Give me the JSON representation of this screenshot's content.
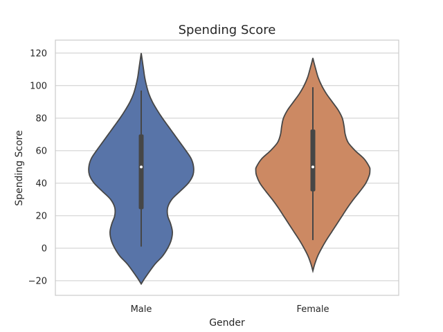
{
  "chart_data": {
    "type": "violin",
    "title": "Spending Score",
    "xlabel": "Gender",
    "ylabel": "Spending Score",
    "ylim": [
      -29,
      128
    ],
    "yticks": [
      -20,
      0,
      20,
      40,
      60,
      80,
      100,
      120
    ],
    "grid": "horizontal",
    "categories": [
      "Male",
      "Female"
    ],
    "series": [
      {
        "category": "Male",
        "color": "#5874a8",
        "min": 1,
        "q1": 24,
        "median": 50,
        "q3": 70,
        "max": 97,
        "density_profile": [
          [
            -22,
            0.0
          ],
          [
            -18,
            0.07
          ],
          [
            -10,
            0.23
          ],
          [
            -5,
            0.36
          ],
          [
            0,
            0.45
          ],
          [
            5,
            0.51
          ],
          [
            10,
            0.53
          ],
          [
            15,
            0.5
          ],
          [
            20,
            0.45
          ],
          [
            25,
            0.45
          ],
          [
            30,
            0.52
          ],
          [
            35,
            0.66
          ],
          [
            40,
            0.8
          ],
          [
            45,
            0.88
          ],
          [
            50,
            0.89
          ],
          [
            55,
            0.85
          ],
          [
            60,
            0.76
          ],
          [
            65,
            0.66
          ],
          [
            70,
            0.56
          ],
          [
            75,
            0.46
          ],
          [
            80,
            0.36
          ],
          [
            85,
            0.27
          ],
          [
            90,
            0.19
          ],
          [
            95,
            0.13
          ],
          [
            100,
            0.09
          ],
          [
            105,
            0.06
          ],
          [
            110,
            0.04
          ],
          [
            115,
            0.02
          ],
          [
            120,
            0.0
          ]
        ]
      },
      {
        "category": "Female",
        "color": "#cc8963",
        "min": 5,
        "q1": 35,
        "median": 50,
        "q3": 73,
        "max": 99,
        "density_profile": [
          [
            -14,
            0.0
          ],
          [
            -10,
            0.03
          ],
          [
            -5,
            0.08
          ],
          [
            0,
            0.15
          ],
          [
            5,
            0.23
          ],
          [
            10,
            0.32
          ],
          [
            15,
            0.41
          ],
          [
            20,
            0.5
          ],
          [
            25,
            0.59
          ],
          [
            30,
            0.69
          ],
          [
            35,
            0.8
          ],
          [
            40,
            0.9
          ],
          [
            45,
            0.96
          ],
          [
            48,
            0.97
          ],
          [
            50,
            0.96
          ],
          [
            55,
            0.87
          ],
          [
            60,
            0.72
          ],
          [
            65,
            0.6
          ],
          [
            70,
            0.55
          ],
          [
            75,
            0.53
          ],
          [
            80,
            0.5
          ],
          [
            85,
            0.43
          ],
          [
            90,
            0.33
          ],
          [
            95,
            0.23
          ],
          [
            100,
            0.15
          ],
          [
            105,
            0.09
          ],
          [
            110,
            0.05
          ],
          [
            114,
            0.02
          ],
          [
            117,
            0.0
          ]
        ]
      }
    ]
  }
}
